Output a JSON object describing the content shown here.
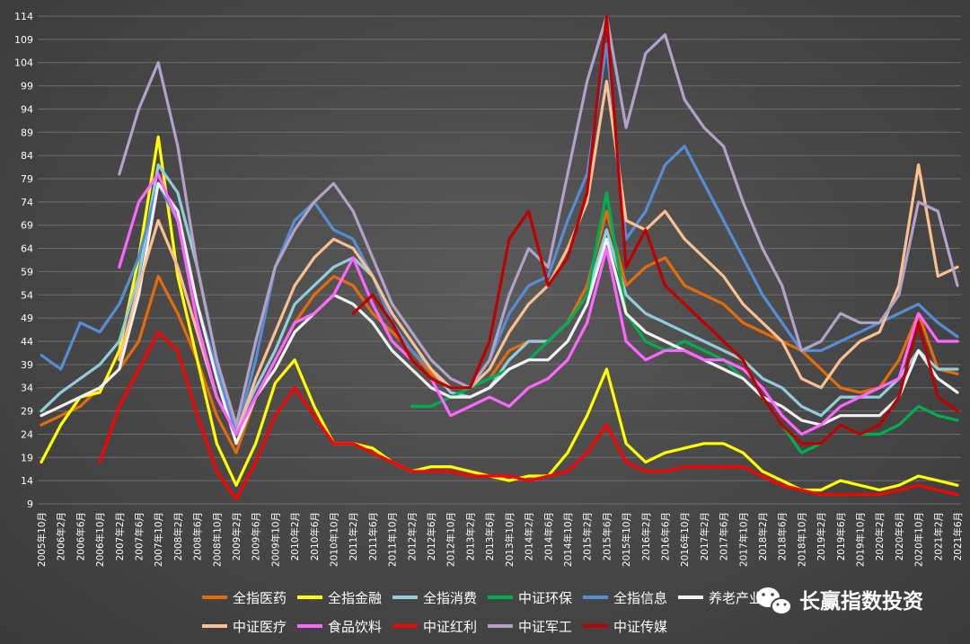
{
  "watermark": {
    "text": "长赢指数投资",
    "icon": "wechat-icon"
  },
  "chart_data": {
    "type": "line",
    "title": "",
    "xlabel": "",
    "ylabel": "",
    "ylim": [
      9,
      114
    ],
    "y_ticks": [
      9,
      14,
      19,
      24,
      29,
      34,
      39,
      44,
      49,
      54,
      59,
      64,
      69,
      74,
      79,
      84,
      89,
      94,
      99,
      104,
      109,
      114
    ],
    "grid": "horizontal",
    "legend_position": "bottom",
    "x_tick_labels": [
      "2005年10月",
      "2006年2月",
      "2006年6月",
      "2006年10月",
      "2007年2月",
      "2007年6月",
      "2007年10月",
      "2008年2月",
      "2008年6月",
      "2008年10月",
      "2009年2月",
      "2009年6月",
      "2009年10月",
      "2010年2月",
      "2010年6月",
      "2010年10月",
      "2011年2月",
      "2011年6月",
      "2011年10月",
      "2012年2月",
      "2012年6月",
      "2012年10月",
      "2013年2月",
      "2013年6月",
      "2013年10月",
      "2014年2月",
      "2014年6月",
      "2014年10月",
      "2015年2月",
      "2015年6月",
      "2015年10月",
      "2016年2月",
      "2016年6月",
      "2016年10月",
      "2017年2月",
      "2017年6月",
      "2017年10月",
      "2018年2月",
      "2018年6月",
      "2018年10月",
      "2019年2月",
      "2019年6月",
      "2019年10月",
      "2020年2月",
      "2020年6月",
      "2020年10月",
      "2021年2月",
      "2021年6月"
    ],
    "series": [
      {
        "name": "全指医药",
        "color": "#e46c0a",
        "values": [
          26,
          28,
          30,
          34,
          38,
          44,
          58,
          50,
          40,
          28,
          20,
          32,
          40,
          48,
          54,
          58,
          56,
          50,
          46,
          42,
          37,
          34,
          34,
          36,
          42,
          44,
          44,
          48,
          56,
          72,
          56,
          60,
          62,
          56,
          54,
          52,
          48,
          46,
          44,
          42,
          38,
          34,
          33,
          34,
          40,
          50,
          38,
          37
        ]
      },
      {
        "name": "全指金融",
        "color": "#ffff00",
        "values": [
          18,
          26,
          32,
          33,
          42,
          62,
          88,
          58,
          40,
          22,
          13,
          22,
          35,
          40,
          30,
          22,
          22,
          21,
          18,
          16,
          17,
          17,
          16,
          15,
          14,
          15,
          15,
          20,
          28,
          38,
          22,
          18,
          20,
          21,
          22,
          22,
          20,
          16,
          14,
          12,
          12,
          14,
          13,
          12,
          13,
          15,
          14,
          13
        ]
      },
      {
        "name": "全指消费",
        "color": "#92cddc",
        "values": [
          29,
          33,
          36,
          39,
          44,
          58,
          82,
          76,
          60,
          40,
          25,
          34,
          42,
          52,
          56,
          60,
          62,
          58,
          50,
          44,
          38,
          33,
          32,
          34,
          40,
          44,
          44,
          48,
          54,
          68,
          54,
          50,
          48,
          46,
          44,
          42,
          40,
          36,
          34,
          30,
          28,
          32,
          32,
          32,
          36,
          42,
          38,
          38
        ]
      },
      {
        "name": "中证环保",
        "color": "#00b050",
        "values": [
          null,
          null,
          null,
          null,
          null,
          null,
          null,
          null,
          null,
          null,
          null,
          null,
          null,
          null,
          null,
          null,
          null,
          null,
          null,
          30,
          30,
          32,
          34,
          36,
          38,
          40,
          44,
          48,
          54,
          76,
          50,
          44,
          42,
          44,
          42,
          40,
          36,
          32,
          26,
          20,
          22,
          26,
          24,
          24,
          26,
          30,
          28,
          27
        ]
      },
      {
        "name": "全指信息",
        "color": "#558ed5",
        "values": [
          41,
          38,
          48,
          46,
          52,
          62,
          78,
          70,
          52,
          38,
          24,
          40,
          60,
          70,
          74,
          68,
          66,
          58,
          48,
          42,
          38,
          34,
          34,
          40,
          50,
          56,
          58,
          70,
          80,
          108,
          66,
          72,
          82,
          86,
          78,
          70,
          62,
          54,
          48,
          42,
          42,
          44,
          46,
          48,
          50,
          52,
          48,
          45
        ]
      },
      {
        "name": "养老产业",
        "color": "#f2f2f2",
        "values": [
          28,
          30,
          32,
          34,
          38,
          54,
          78,
          72,
          52,
          36,
          22,
          32,
          38,
          46,
          50,
          54,
          52,
          48,
          42,
          38,
          34,
          32,
          32,
          34,
          38,
          40,
          40,
          44,
          52,
          66,
          50,
          46,
          44,
          42,
          40,
          38,
          36,
          32,
          30,
          27,
          26,
          28,
          28,
          28,
          32,
          42,
          36,
          33
        ]
      },
      {
        "name": "中证医疗",
        "color": "#fac090",
        "values": [
          null,
          null,
          null,
          null,
          40,
          56,
          70,
          60,
          46,
          32,
          24,
          36,
          46,
          56,
          62,
          66,
          64,
          58,
          50,
          44,
          38,
          34,
          34,
          38,
          46,
          52,
          56,
          64,
          74,
          100,
          70,
          68,
          72,
          66,
          62,
          58,
          52,
          48,
          44,
          36,
          34,
          40,
          44,
          46,
          56,
          82,
          58,
          60
        ]
      },
      {
        "name": "食品饮料",
        "color": "#ff66ff",
        "values": [
          null,
          null,
          null,
          null,
          60,
          74,
          80,
          70,
          48,
          32,
          24,
          32,
          40,
          48,
          50,
          54,
          62,
          52,
          44,
          40,
          36,
          28,
          30,
          32,
          30,
          34,
          36,
          40,
          48,
          64,
          44,
          40,
          42,
          42,
          40,
          40,
          38,
          34,
          28,
          24,
          26,
          30,
          32,
          34,
          36,
          50,
          44,
          44
        ]
      },
      {
        "name": "中证红利",
        "color": "#ff0000",
        "values": [
          null,
          null,
          null,
          18,
          30,
          38,
          46,
          42,
          28,
          16,
          10,
          18,
          28,
          34,
          28,
          22,
          22,
          20,
          18,
          16,
          16,
          16,
          15,
          15,
          15,
          14,
          15,
          16,
          20,
          26,
          18,
          16,
          16,
          17,
          17,
          17,
          17,
          15,
          13,
          12,
          11,
          11,
          11,
          11,
          12,
          13,
          12,
          11
        ]
      },
      {
        "name": "中证军工",
        "color": "#b3a2c7",
        "values": [
          null,
          null,
          null,
          null,
          80,
          94,
          104,
          86,
          60,
          40,
          26,
          44,
          60,
          68,
          74,
          78,
          72,
          62,
          52,
          46,
          40,
          36,
          34,
          40,
          54,
          64,
          60,
          80,
          100,
          114,
          90,
          106,
          110,
          96,
          90,
          86,
          74,
          64,
          56,
          42,
          44,
          50,
          48,
          48,
          54,
          74,
          72,
          56
        ]
      },
      {
        "name": "中证传媒",
        "color": "#c00000",
        "values": [
          null,
          null,
          null,
          null,
          null,
          null,
          null,
          null,
          null,
          null,
          null,
          null,
          null,
          null,
          null,
          null,
          50,
          54,
          48,
          40,
          36,
          34,
          34,
          44,
          66,
          72,
          56,
          62,
          76,
          114,
          60,
          68,
          56,
          52,
          48,
          44,
          40,
          32,
          26,
          22,
          22,
          26,
          24,
          26,
          32,
          48,
          32,
          29
        ]
      }
    ]
  }
}
